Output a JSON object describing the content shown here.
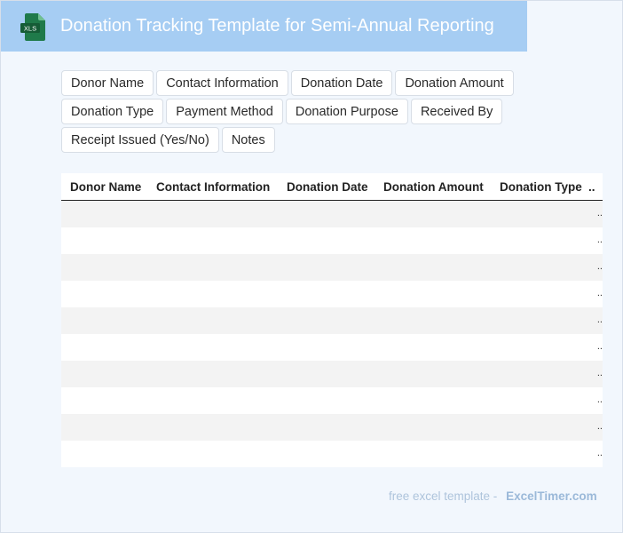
{
  "header": {
    "icon_label": "XLS",
    "title": "Donation Tracking Template for Semi-Annual Reporting"
  },
  "fields": [
    "Donor Name",
    "Contact Information",
    "Donation Date",
    "Donation Amount",
    "Donation Type",
    "Payment Method",
    "Donation Purpose",
    "Received By",
    "Receipt Issued (Yes/No)",
    "Notes"
  ],
  "table": {
    "headers": [
      "Donor Name",
      "Contact Information",
      "Donation Date",
      "Donation Amount",
      "Donation Type",
      ".."
    ],
    "row_marker": ".."
  },
  "footer": {
    "text": "free excel template -",
    "brand": "ExcelTimer.com"
  },
  "colors": {
    "header_bg": "#a6cdf3",
    "icon_green": "#1f7a4a",
    "page_bg": "#f2f7fd"
  }
}
